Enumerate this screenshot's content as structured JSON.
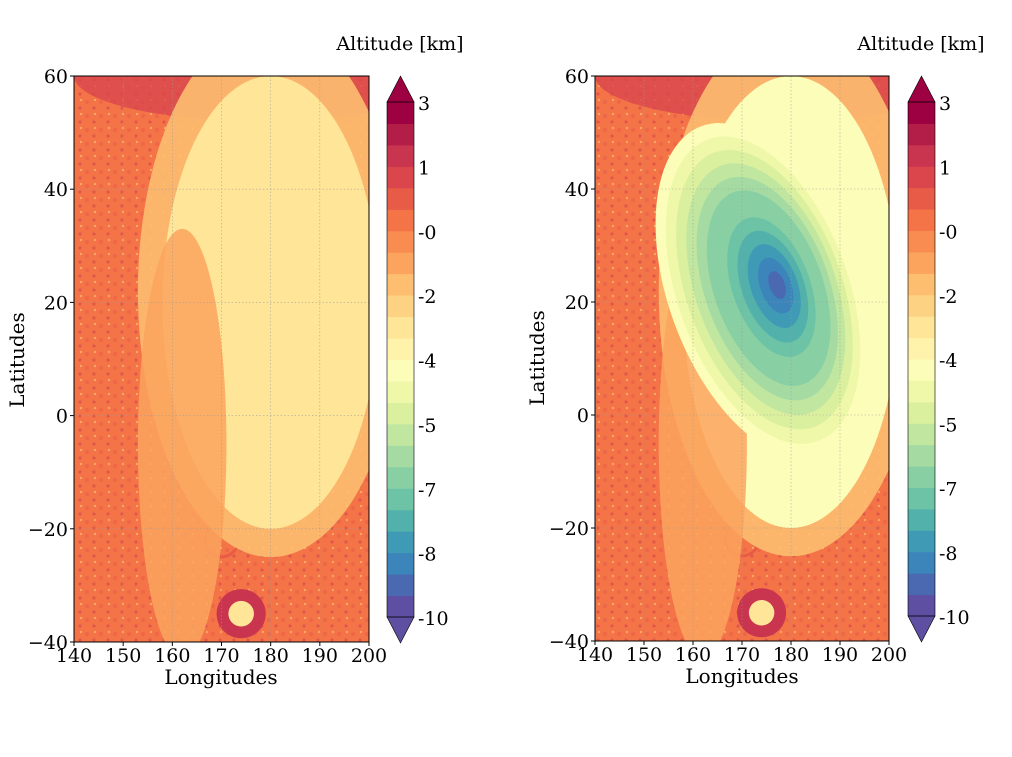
{
  "colors": {
    "scale": [
      "#5e4fa2",
      "#4a69b0",
      "#3b85bb",
      "#3f9bb5",
      "#52b1ab",
      "#6cc3a5",
      "#88cfa4",
      "#a5dba3",
      "#c0e6a0",
      "#dbf09f",
      "#eef8a8",
      "#fbfdb8",
      "#fff2aa",
      "#fee597",
      "#fed283",
      "#fdbe70",
      "#fca45e",
      "#f88c51",
      "#f47447",
      "#e85c47",
      "#da464c",
      "#c9344e",
      "#b31e48",
      "#9e0142"
    ],
    "upland_texture": "#e85c47"
  },
  "chart_data": [
    {
      "type": "heatmap",
      "title": "",
      "xlabel": "Longitudes",
      "ylabel": "Latitudes",
      "xlim": [
        140,
        200
      ],
      "ylim": [
        -40,
        60
      ],
      "xticks": [
        "140",
        "150",
        "160",
        "170",
        "180",
        "190",
        "200"
      ],
      "yticks": [
        "60",
        "40",
        "20",
        "0",
        "−20",
        "−40"
      ],
      "grid": true,
      "colorbar": {
        "title": "Altitude [km]",
        "vmin": -10,
        "vmax": 3,
        "levels": 22,
        "extend": "both",
        "tick_labels": [
          "3",
          "1",
          "-0",
          "-2",
          "-4",
          "-5",
          "-7",
          "-8",
          "-10"
        ]
      },
      "field": {
        "description": "Topography of a basin: low interior plain around -3 km surrounded by higher terrain (-1 to 2 km)",
        "basin_floor_km": -3,
        "basin_center": [
          180,
          20
        ],
        "basin_extent_deg": [
          22,
          40
        ],
        "rim_km": 0
      }
    },
    {
      "type": "heatmap",
      "title": "",
      "xlabel": "Longitudes",
      "ylabel": "Latitudes",
      "xlim": [
        140,
        200
      ],
      "ylim": [
        -40,
        60
      ],
      "xticks": [
        "140",
        "150",
        "160",
        "170",
        "180",
        "190",
        "200"
      ],
      "yticks": [
        "60",
        "40",
        "20",
        "0",
        "−20",
        "−40"
      ],
      "grid": true,
      "colorbar": {
        "title": "Altitude [km]",
        "vmin": -10,
        "vmax": 3,
        "levels": 22,
        "extend": "both",
        "tick_labels": [
          "3",
          "1",
          "-0",
          "-2",
          "-4",
          "-5",
          "-7",
          "-8",
          "-10"
        ]
      },
      "field": {
        "description": "Same topography with an additional elliptical depression (minimum about -9 km) inside the basin",
        "basin_floor_km": -4,
        "basin_center": [
          180,
          20
        ],
        "basin_extent_deg": [
          22,
          40
        ],
        "rim_km": 0,
        "depression": {
          "center": [
            174,
            22
          ],
          "radius_deg": [
            19,
            31
          ],
          "rotation_deg": -20,
          "min_km": -9
        }
      }
    }
  ]
}
